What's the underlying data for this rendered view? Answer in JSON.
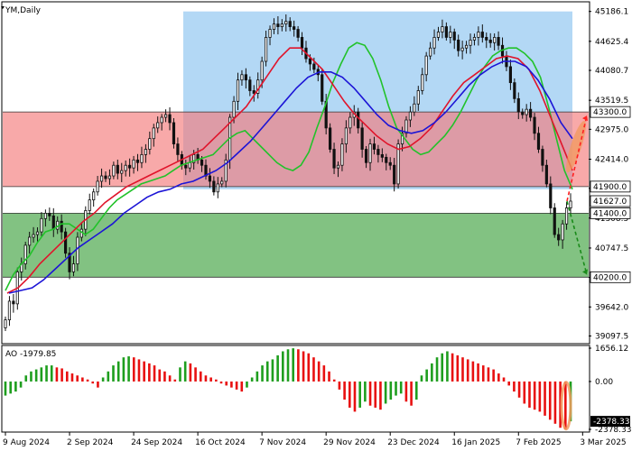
{
  "header": {
    "title": "YM,Daily"
  },
  "colors": {
    "candle": "#111111",
    "ma_fast": "#22c22a",
    "ma_mid": "#e0142b",
    "ma_slow": "#1c14d6",
    "zone_top": "#8ac3f0",
    "zone_mid": "#f47b7b",
    "zone_low": "#2e9a2e",
    "ao_up": "#1e9e1e",
    "ao_down": "#e81010",
    "highlight": "#f29a5e"
  },
  "chart_data": [
    {
      "type": "candlestick",
      "title": "YM,Daily",
      "symbol": "YM",
      "timeframe": "Daily",
      "ylim": [
        38970,
        45350
      ],
      "y_ticks": [
        45186.1,
        44625.4,
        44080.7,
        43519.5,
        42975.0,
        42414.0,
        41867.3,
        41308.5,
        40747.5,
        40195.7,
        39642.0,
        39097.5
      ],
      "y_tick_labels": [
        "45186.1",
        "44625.4",
        "44080.7",
        "43519.5",
        "42975.0",
        "42414.0",
        "41867.3",
        "41308.5",
        "40747.5",
        "40195.7",
        "39642.0",
        "39097.5"
      ],
      "x_tick_labels": [
        "9 Aug 2024",
        "2 Sep 2024",
        "24 Sep 2024",
        "16 Oct 2024",
        "7 Nov 2024",
        "29 Nov 2024",
        "23 Dec 2024",
        "16 Jan 2025",
        "7 Feb 2025",
        "3 Mar 2025"
      ],
      "x_tick_index": [
        0,
        16,
        32,
        48,
        64,
        80,
        96,
        112,
        128,
        144
      ],
      "closes": [
        39400,
        39750,
        39700,
        40300,
        40450,
        40800,
        40950,
        41000,
        41050,
        41300,
        41400,
        41350,
        41100,
        41250,
        41050,
        40650,
        40300,
        40450,
        40950,
        41100,
        41450,
        41650,
        41800,
        42000,
        42100,
        42050,
        42100,
        42300,
        42150,
        42200,
        42300,
        42250,
        42400,
        42350,
        42500,
        42600,
        42800,
        43000,
        43100,
        43200,
        43250,
        43100,
        42700,
        42500,
        42300,
        42250,
        42350,
        42500,
        42400,
        42300,
        42100,
        42000,
        41800,
        41950,
        42000,
        42400,
        43200,
        43500,
        43900,
        44000,
        43900,
        43700,
        43650,
        43900,
        44250,
        44700,
        44850,
        44950,
        44900,
        44950,
        45000,
        44900,
        44850,
        44700,
        44500,
        44300,
        44200,
        44100,
        44000,
        43500,
        43000,
        42600,
        42250,
        42300,
        42700,
        43000,
        43200,
        43300,
        43000,
        42600,
        42350,
        42700,
        42600,
        42500,
        42450,
        42350,
        42300,
        41950,
        42700,
        42900,
        43150,
        43300,
        43450,
        43700,
        44000,
        44350,
        44500,
        44700,
        44800,
        44900,
        44700,
        44800,
        44650,
        44450,
        44500,
        44550,
        44650,
        44700,
        44800,
        44700,
        44650,
        44600,
        44700,
        44550,
        44350,
        44150,
        43850,
        43550,
        43300,
        43250,
        43350,
        43200,
        42900,
        42600,
        42300,
        41950,
        41500,
        41000,
        40900,
        41200,
        41500,
        41627
      ],
      "moving_averages": [
        {
          "color_key": "ma_fast",
          "values": [
            39950,
            40250,
            40450,
            40600,
            40850,
            41050,
            41100,
            41200,
            41200,
            41100,
            41000,
            41100,
            41300,
            41500,
            41650,
            41750,
            41850,
            41950,
            42000,
            42050,
            42100,
            42200,
            42300,
            42350,
            42400,
            42450,
            42500,
            42650,
            42800,
            42900,
            42950,
            42800,
            42650,
            42500,
            42350,
            42250,
            42200,
            42300,
            42550,
            43000,
            43400,
            43850,
            44200,
            44500,
            44600,
            44550,
            44300,
            43900,
            43400,
            43000,
            42800,
            42600,
            42500,
            42550,
            42700,
            42850,
            43050,
            43300,
            43600,
            43900,
            44150,
            44350,
            44450,
            44500,
            44500,
            44400,
            44250,
            43950,
            43400,
            42800,
            42200,
            41850
          ]
        },
        {
          "color_key": "ma_mid",
          "values": [
            39900,
            40000,
            40200,
            40450,
            40650,
            40850,
            41050,
            41250,
            41400,
            41600,
            41750,
            41900,
            42000,
            42100,
            42200,
            42300,
            42400,
            42500,
            42600,
            42800,
            43000,
            43200,
            43400,
            43700,
            44000,
            44300,
            44500,
            44500,
            44300,
            44100,
            43800,
            43500,
            43250,
            43050,
            42850,
            42700,
            42600,
            42650,
            42800,
            43000,
            43300,
            43600,
            43850,
            44000,
            44150,
            44300,
            44350,
            44300,
            44100,
            43700,
            43200,
            42700,
            42200
          ]
        },
        {
          "color_key": "ma_slow",
          "values": [
            39900,
            39950,
            40000,
            40150,
            40350,
            40550,
            40750,
            40900,
            41050,
            41200,
            41400,
            41550,
            41700,
            41800,
            41850,
            41950,
            42000,
            42100,
            42200,
            42350,
            42550,
            42750,
            43000,
            43250,
            43500,
            43750,
            43950,
            44050,
            44050,
            43950,
            43750,
            43500,
            43250,
            43050,
            42950,
            42900,
            42950,
            43100,
            43300,
            43550,
            43800,
            44000,
            44150,
            44250,
            44250,
            44150,
            43900,
            43550,
            43100,
            42800
          ]
        }
      ],
      "zones": [
        {
          "name": "zone_top",
          "upper": 45186.1,
          "lower": 41850.0,
          "color_key": "zone_top"
        },
        {
          "name": "zone_mid",
          "upper": 43300.0,
          "lower": 41900.0,
          "color_key": "zone_mid"
        },
        {
          "name": "zone_low",
          "upper": 41400.0,
          "lower": 40200.0,
          "color_key": "zone_low"
        }
      ],
      "price_labels": [
        {
          "value": 43300.0,
          "text": "43300.0",
          "style": "white"
        },
        {
          "value": 41900.0,
          "text": "41900.0",
          "style": "white"
        },
        {
          "value": 41627.0,
          "text": "41627.0",
          "style": "white"
        },
        {
          "value": 41400.0,
          "text": "41400.0",
          "style": "white"
        },
        {
          "value": 40200.0,
          "text": "40200.0",
          "style": "white"
        }
      ],
      "scenario_arrows": [
        {
          "direction": "up",
          "color": "#ff2020",
          "from": 41627,
          "to": 43300
        },
        {
          "direction": "down",
          "color": "#1a8a1a",
          "from": 41627,
          "to": 40200
        }
      ]
    },
    {
      "type": "bar",
      "title": "AO -1979.85",
      "indicator": "AO",
      "current_value": -1979.85,
      "ylim": [
        -2378.33,
        1656.12
      ],
      "y_tick_labels": [
        "1656.12",
        "0.00",
        "-2378.33"
      ],
      "y_ticks": [
        1656.12,
        0.0,
        -2378.33
      ],
      "values": [
        -700,
        -600,
        -500,
        -300,
        300,
        500,
        600,
        700,
        800,
        800,
        700,
        650,
        500,
        400,
        300,
        200,
        100,
        -100,
        -300,
        200,
        500,
        800,
        1000,
        1200,
        1250,
        1200,
        1100,
        1000,
        900,
        800,
        600,
        500,
        300,
        100,
        700,
        1000,
        900,
        700,
        500,
        300,
        200,
        100,
        -100,
        -200,
        -300,
        -400,
        -500,
        -300,
        200,
        500,
        800,
        1000,
        1100,
        1300,
        1500,
        1600,
        1650,
        1600,
        1500,
        1400,
        1200,
        1000,
        800,
        500,
        100,
        -400,
        -900,
        -1300,
        -1500,
        -1300,
        -1000,
        -1200,
        -1300,
        -1400,
        -1100,
        -900,
        -700,
        -600,
        -1000,
        -1200,
        -900,
        300,
        600,
        900,
        1200,
        1400,
        1500,
        1400,
        1300,
        1200,
        1100,
        1000,
        900,
        800,
        700,
        600,
        400,
        200,
        -200,
        -500,
        -800,
        -1100,
        -1300,
        -1400,
        -1500,
        -1700,
        -1900,
        -2100,
        -2300,
        -2378,
        -1980
      ]
    }
  ]
}
